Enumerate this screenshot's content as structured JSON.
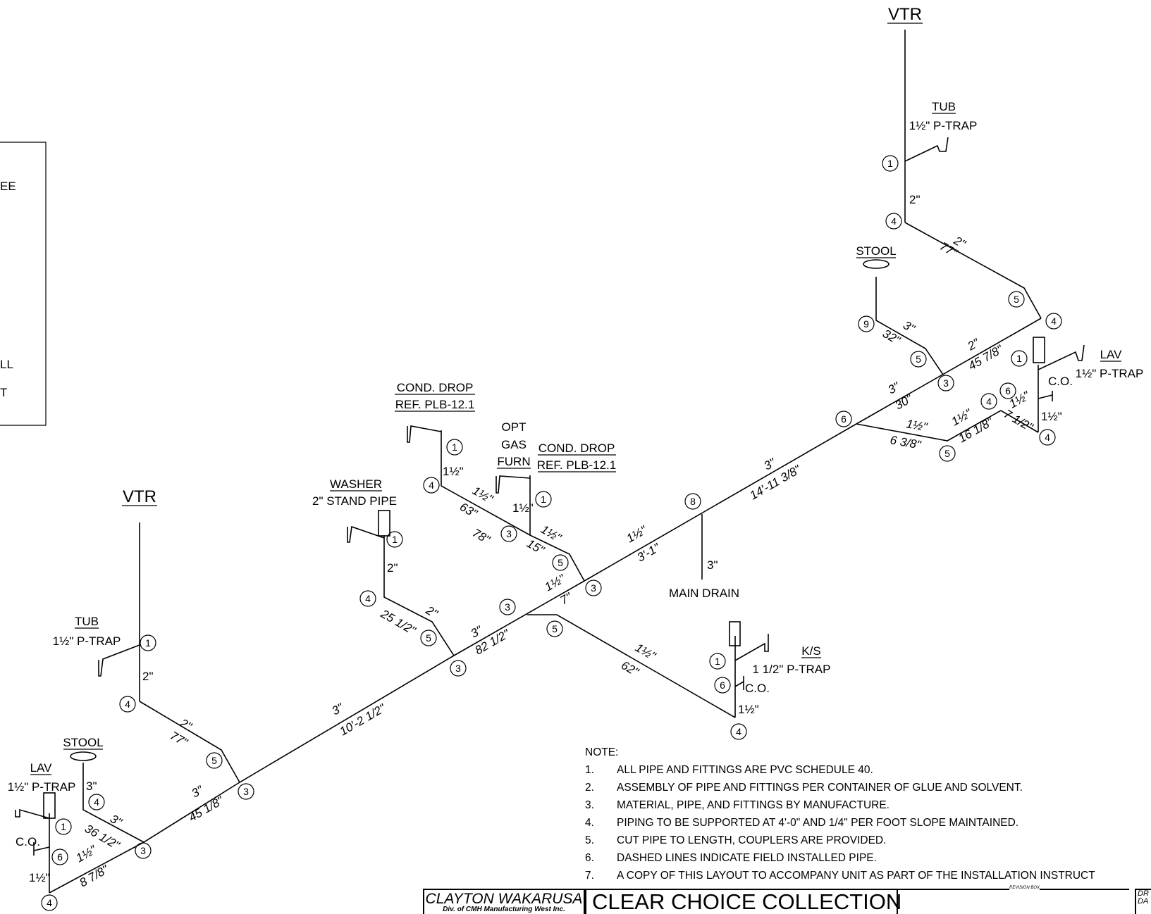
{
  "legend_fragments": [
    "EE",
    "LL",
    "T"
  ],
  "vtr_label": "VTR",
  "fixtures": {
    "tub_label": "TUB",
    "trap_1_5": "1½\" P-TRAP",
    "stool_label": "STOOL",
    "lav_label": "LAV",
    "co_label": "C.O.",
    "ks_label": "K/S",
    "ks_trap": "1 1/2\" P-TRAP",
    "washer_label": "WASHER",
    "washer_sub": "2\" STAND PIPE",
    "cond_drop_label": "COND. DROP",
    "cond_drop_ref": "REF. PLB-12.1",
    "opt_gas_1": "OPT",
    "opt_gas_2": "GAS",
    "opt_gas_3": "FURN",
    "main_drain": "MAIN DRAIN"
  },
  "sizes": {
    "s2": "2\"",
    "s3": "3\"",
    "s1_5": "1½\""
  },
  "lengths": {
    "l77": "77\"",
    "l45_1_8": "45 1/8\"",
    "l36_1_2": "36 1/2\"",
    "l8_7_8": "8 7/8\"",
    "l10_2_1_2": "10'-2 1/2\"",
    "l25_1_2": "25 1/2\"",
    "l82_1_2": "82 1/2\"",
    "l63": "63\"",
    "l78": "78\"",
    "l15": "15\"",
    "l7": "7\"",
    "l3_1": "3'-1\"",
    "l62": "62\"",
    "l14_11_3_8": "14'-11 3/8\"",
    "l30": "30\"",
    "l6_3_8": "6 3/8\"",
    "l16_1_8": "16 1/8\"",
    "l7_1_2": "7 1/2\"",
    "l32": "32\"",
    "l45_7_8": "45 7/8\""
  },
  "fitting_numbers": {
    "f1": "1",
    "f3": "3",
    "f4": "4",
    "f5": "5",
    "f6": "6",
    "f8": "8",
    "f9": "9"
  },
  "notes": {
    "title": "NOTE:",
    "items": [
      {
        "n": "1.",
        "text": "ALL PIPE AND FITTINGS ARE PVC SCHEDULE 40."
      },
      {
        "n": "2.",
        "text": "ASSEMBLY OF PIPE AND FITTINGS PER CONTAINER OF GLUE AND SOLVENT."
      },
      {
        "n": "3.",
        "text": "MATERIAL, PIPE, AND FITTINGS BY MANUFACTURE."
      },
      {
        "n": "4.",
        "text": "PIPING TO BE SUPPORTED AT 4'-0\" AND 1/4\" PER FOOT SLOPE MAINTAINED."
      },
      {
        "n": "5.",
        "text": "CUT PIPE TO LENGTH, COUPLERS ARE PROVIDED."
      },
      {
        "n": "6.",
        "text": "DASHED LINES INDICATE FIELD INSTALLED PIPE."
      },
      {
        "n": "7.",
        "text": "A COPY OF THIS LAYOUT TO ACCOMPANY UNIT AS PART OF THE INSTALLATION INSTRUCT"
      }
    ]
  },
  "title_block": {
    "company": "CLAYTON WAKARUSA",
    "division": "Div. of CMH Manufacturing West Inc.",
    "collection": "CLEAR CHOICE COLLECTION",
    "revision_box": "REVISION BOX",
    "dr": "DR",
    "da": "DA"
  }
}
